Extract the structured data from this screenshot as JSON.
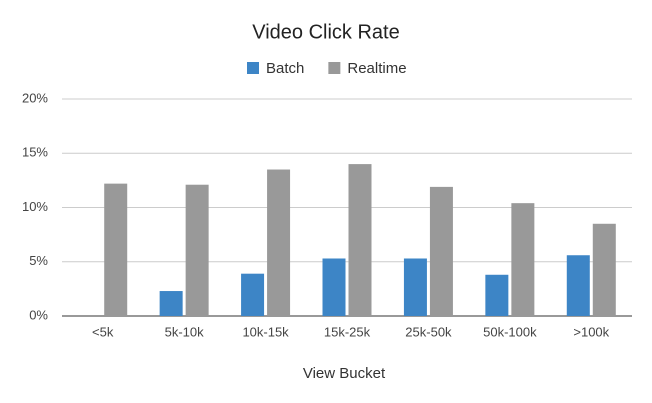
{
  "chart_data": {
    "type": "bar",
    "title": "Video Click Rate",
    "x_label": "View Bucket",
    "categories": [
      "<5k",
      "5k-10k",
      "10k-15k",
      "15k-25k",
      "25k-50k",
      "50k-100k",
      ">100k"
    ],
    "series": [
      {
        "name": "Batch",
        "color": "#3d85c6",
        "values": [
          null,
          2.3,
          3.9,
          5.3,
          5.3,
          3.8,
          5.6
        ]
      },
      {
        "name": "Realtime",
        "color": "#999999",
        "values": [
          12.2,
          12.1,
          13.5,
          14.0,
          11.9,
          10.4,
          8.5
        ]
      }
    ],
    "ylim": [
      0,
      20
    ],
    "yticks": [
      {
        "value": 0,
        "label": "0%"
      },
      {
        "value": 5,
        "label": "5%"
      },
      {
        "value": 10,
        "label": "10%"
      },
      {
        "value": 15,
        "label": "15%"
      },
      {
        "value": 20,
        "label": "20%"
      }
    ],
    "grid": true,
    "legend": "top"
  }
}
